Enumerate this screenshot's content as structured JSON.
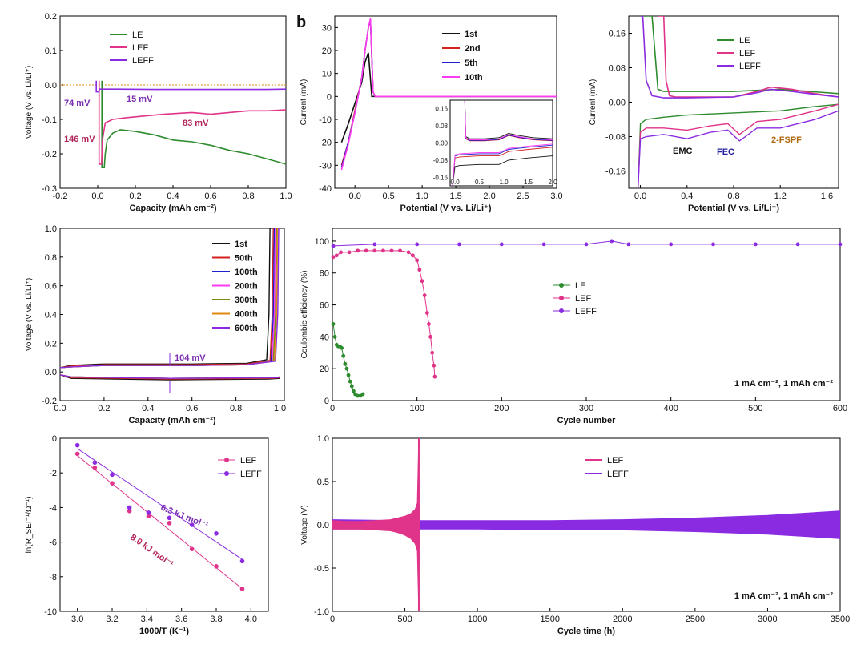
{
  "panel_label": "b",
  "chart_data": [
    {
      "id": "a",
      "type": "line",
      "xlabel": "Capacity (mAh cm⁻²)",
      "ylabel": "Voltage (V vs. Li/Li⁺)",
      "xlim": [
        -0.2,
        1.0
      ],
      "ylim": [
        -0.3,
        0.2
      ],
      "xticks": [
        -0.2,
        0.0,
        0.2,
        0.4,
        0.6,
        0.8,
        1.0
      ],
      "yticks": [
        -0.3,
        -0.2,
        -0.1,
        0.0,
        0.1,
        0.2
      ],
      "xticklabels": [
        "-0.2",
        "0.0",
        "0.2",
        "0.4",
        "0.6",
        "0.8",
        "1.0"
      ],
      "yticklabels": [
        "-0.3",
        "-0.2",
        "-0.1",
        "0.0",
        "0.1",
        "0.2"
      ],
      "legend": [
        "LE",
        "LEF",
        "LEFF"
      ],
      "legend_position": "top-left",
      "series": [
        {
          "name": "LE",
          "color": "#2e8b2e",
          "x": [
            0.035,
            0.04,
            0.05,
            0.08,
            0.12,
            0.2,
            0.3,
            0.4,
            0.5,
            0.6,
            0.7,
            0.8,
            0.9,
            1.0
          ],
          "y": [
            -0.24,
            -0.2,
            -0.16,
            -0.14,
            -0.13,
            -0.135,
            -0.145,
            -0.16,
            -0.165,
            -0.175,
            -0.19,
            -0.2,
            -0.215,
            -0.23
          ]
        },
        {
          "name": "LEF",
          "color": "#e0338a",
          "x": [
            0.02,
            0.025,
            0.04,
            0.08,
            0.15,
            0.25,
            0.35,
            0.5,
            0.6,
            0.7,
            0.8,
            0.9,
            1.0
          ],
          "y": [
            -0.23,
            -0.16,
            -0.11,
            -0.1,
            -0.095,
            -0.09,
            -0.085,
            -0.08,
            -0.085,
            -0.08,
            -0.075,
            -0.075,
            -0.072
          ]
        },
        {
          "name": "LEFF",
          "color": "#8a2be2",
          "x": [
            0.005,
            0.01,
            0.03,
            0.1,
            0.3,
            0.5,
            0.7,
            0.9,
            1.0
          ],
          "y": [
            -0.02,
            -0.012,
            -0.012,
            -0.012,
            -0.013,
            -0.013,
            -0.013,
            -0.013,
            -0.012
          ]
        }
      ],
      "annotations": [
        "74 mV",
        "15 mV",
        "146 mV",
        "83 mV"
      ]
    },
    {
      "id": "b",
      "type": "line",
      "xlabel": "Potential (V vs. Li/Li⁺)",
      "ylabel": "Current (mA)",
      "xlim": [
        -0.3,
        3.0
      ],
      "ylim": [
        -40,
        35
      ],
      "xticks": [
        0.0,
        0.5,
        1.0,
        1.5,
        2.0,
        2.5,
        3.0
      ],
      "yticks": [
        -40,
        -30,
        -20,
        -10,
        0,
        10,
        20,
        30
      ],
      "xticklabels": [
        "0.0",
        "0.5",
        "1.0",
        "1.5",
        "2.0",
        "2.5",
        "3.0"
      ],
      "yticklabels": [
        "-40",
        "-30",
        "-20",
        "-10",
        "0",
        "10",
        "20",
        "30"
      ],
      "legend": [
        "1st",
        "2nd",
        "5th",
        "10th"
      ],
      "legend_position": "top-right",
      "series": [
        {
          "name": "1st",
          "color": "#111111",
          "x": [
            -0.2,
            -0.1,
            0.0,
            0.1,
            0.15,
            0.2,
            0.25,
            0.3,
            0.5,
            1.0,
            3.0
          ],
          "y": [
            -20,
            -12,
            -3,
            6,
            15,
            19,
            0,
            0,
            0,
            0,
            0
          ]
        },
        {
          "name": "2nd",
          "color": "#d62020",
          "x": [
            -0.2,
            -0.1,
            0.0,
            0.1,
            0.15,
            0.2,
            0.23,
            0.27,
            0.3,
            0.5,
            1.0,
            3.0
          ],
          "y": [
            -30,
            -20,
            -6,
            8,
            20,
            30,
            33,
            2,
            0,
            0,
            0,
            0
          ]
        },
        {
          "name": "5th",
          "color": "#2020d0",
          "x": [
            -0.2,
            -0.1,
            0.0,
            0.1,
            0.15,
            0.2,
            0.23,
            0.27,
            0.3,
            0.5,
            1.0,
            3.0
          ],
          "y": [
            -31,
            -20,
            -7,
            8,
            20,
            30,
            33.5,
            2,
            0,
            0,
            0,
            0
          ]
        },
        {
          "name": "10th",
          "color": "#ff3df0",
          "x": [
            -0.2,
            -0.1,
            0.0,
            0.1,
            0.15,
            0.2,
            0.23,
            0.27,
            0.3,
            0.5,
            1.0,
            3.0
          ],
          "y": [
            -32,
            -21,
            -7,
            8,
            20,
            30,
            34,
            2,
            0,
            0,
            0,
            0
          ]
        }
      ],
      "inset": {
        "xlim": [
          -0.1,
          2.0
        ],
        "ylim": [
          -0.2,
          0.2
        ],
        "xticks": [
          0.0,
          0.5,
          1.0,
          1.5,
          2.0
        ],
        "yticks": [
          -0.16,
          -0.08,
          0.0,
          0.08,
          0.16
        ],
        "xticklabels": [
          "0.0",
          "0.5",
          "1.0",
          "1.5",
          "2.0"
        ],
        "yticklabels": [
          "-0.16",
          "-0.08",
          "0.00",
          "0.08",
          "0.16"
        ]
      }
    },
    {
      "id": "c",
      "type": "line",
      "xlabel": "Potential (V vs. Li/Li⁺)",
      "ylabel": "Current (mA)",
      "xlim": [
        -0.1,
        1.7
      ],
      "ylim": [
        -0.2,
        0.2
      ],
      "xticks": [
        0.0,
        0.4,
        0.8,
        1.2,
        1.6
      ],
      "yticks": [
        -0.16,
        -0.08,
        0.0,
        0.08,
        0.16
      ],
      "xticklabels": [
        "0.0",
        "0.4",
        "0.8",
        "1.2",
        "1.6"
      ],
      "yticklabels": [
        "-0.16",
        "-0.08",
        "0.00",
        "0.08",
        "0.16"
      ],
      "legend": [
        "LE",
        "LEF",
        "LEFF"
      ],
      "legend_position": "top-right",
      "series": [
        {
          "name": "LE",
          "color": "#2e8b2e",
          "x": [
            0.0,
            0.05,
            0.1,
            0.15,
            0.2,
            0.4,
            0.8,
            1.2,
            1.7
          ],
          "y": [
            0.2,
            0.2,
            0.2,
            0.03,
            0.025,
            0.025,
            0.025,
            0.03,
            0.02
          ]
        },
        {
          "name": "LEF",
          "color": "#e0338a",
          "x": [
            0.15,
            0.2,
            0.22,
            0.25,
            0.3,
            0.5,
            0.8,
            1.0,
            1.12,
            1.3,
            1.5,
            1.7
          ],
          "y": [
            0.2,
            0.2,
            0.05,
            0.015,
            0.012,
            0.012,
            0.012,
            0.025,
            0.035,
            0.03,
            0.02,
            0.012
          ]
        },
        {
          "name": "LEFF",
          "color": "#8a2be2",
          "x": [
            0.0,
            0.02,
            0.05,
            0.1,
            0.2,
            0.4,
            0.8,
            1.0,
            1.12,
            1.3,
            1.5,
            1.7
          ],
          "y": [
            0.2,
            0.2,
            0.05,
            0.015,
            0.01,
            0.01,
            0.012,
            0.022,
            0.03,
            0.025,
            0.018,
            0.012
          ]
        }
      ],
      "annotations": [
        "EMC",
        "FEC",
        "2-FSPF"
      ]
    },
    {
      "id": "d",
      "type": "line",
      "xlabel": "Capacity (mAh cm⁻²)",
      "ylabel": "Voltage (V vs. Li/Li⁺)",
      "xlim": [
        0.0,
        1.02
      ],
      "ylim": [
        -0.2,
        1.0
      ],
      "xticks": [
        0.0,
        0.2,
        0.4,
        0.6,
        0.8,
        1.0
      ],
      "yticks": [
        -0.2,
        0.0,
        0.2,
        0.4,
        0.6,
        0.8,
        1.0
      ],
      "xticklabels": [
        "0.0",
        "0.2",
        "0.4",
        "0.6",
        "0.8",
        "1.0"
      ],
      "yticklabels": [
        "-0.2",
        "0.0",
        "0.2",
        "0.4",
        "0.6",
        "0.8",
        "1.0"
      ],
      "legend": [
        "1st",
        "50th",
        "100th",
        "200th",
        "300th",
        "400th",
        "600th"
      ],
      "legend_position": "top-right",
      "series": [
        {
          "name": "1st",
          "color": "#111111",
          "charge_end": 0.95,
          "plateau": 0.055
        },
        {
          "name": "50th",
          "color": "#d62020",
          "charge_end": 0.965,
          "plateau": 0.05
        },
        {
          "name": "100th",
          "color": "#2020d0",
          "charge_end": 0.97,
          "plateau": 0.045
        },
        {
          "name": "200th",
          "color": "#ff3df0",
          "charge_end": 0.975,
          "plateau": 0.045
        },
        {
          "name": "300th",
          "color": "#7a8a10",
          "charge_end": 0.98,
          "plateau": 0.045
        },
        {
          "name": "400th",
          "color": "#e08a10",
          "charge_end": 0.985,
          "plateau": 0.045
        },
        {
          "name": "600th",
          "color": "#8a2be2",
          "charge_end": 0.99,
          "plateau": 0.045
        }
      ],
      "annotations": [
        "104 mV"
      ]
    },
    {
      "id": "e",
      "type": "scatter",
      "xlabel": "Cycle number",
      "ylabel": "Coulombic efficiency (%)",
      "xlim": [
        0,
        600
      ],
      "ylim": [
        0,
        108
      ],
      "xticks": [
        0,
        100,
        200,
        300,
        400,
        500,
        600
      ],
      "yticks": [
        0,
        20,
        40,
        60,
        80,
        100
      ],
      "xticklabels": [
        "0",
        "100",
        "200",
        "300",
        "400",
        "500",
        "600"
      ],
      "yticklabels": [
        "0",
        "20",
        "40",
        "60",
        "80",
        "100"
      ],
      "legend": [
        "LE",
        "LEF",
        "LEFF"
      ],
      "legend_position": "center",
      "series": [
        {
          "name": "LE",
          "color": "#2e8b2e",
          "x": [
            1,
            3,
            5,
            7,
            9,
            11,
            13,
            15,
            17,
            19,
            21,
            23,
            25,
            27,
            30,
            33,
            36
          ],
          "y": [
            48,
            40,
            35,
            34,
            34,
            33,
            28,
            23,
            20,
            16,
            12,
            9,
            6,
            4,
            3,
            3,
            4
          ]
        },
        {
          "name": "LEF",
          "color": "#e0338a",
          "x": [
            1,
            5,
            10,
            20,
            30,
            40,
            50,
            60,
            70,
            80,
            90,
            95,
            100,
            103,
            106,
            109,
            112,
            114,
            116,
            118,
            120,
            121
          ],
          "y": [
            90,
            91,
            93,
            93,
            94,
            94,
            94,
            94,
            94,
            94,
            93,
            91,
            88,
            82,
            75,
            66,
            55,
            48,
            40,
            30,
            22,
            15
          ]
        },
        {
          "name": "LEFF",
          "color": "#8a2be2",
          "x": [
            1,
            50,
            100,
            150,
            200,
            250,
            300,
            330,
            350,
            400,
            450,
            500,
            550,
            600
          ],
          "y": [
            97,
            98,
            98,
            98,
            98,
            98,
            98,
            100,
            98,
            98,
            98,
            98,
            98,
            98
          ]
        }
      ],
      "annotations": [
        "1 mA cm⁻², 1 mAh cm⁻²"
      ]
    },
    {
      "id": "f",
      "type": "scatter",
      "xlabel": "1000/T (K⁻¹)",
      "ylabel": "ln(R_SEI⁻¹/Ω⁻¹)",
      "xlim": [
        2.9,
        4.1
      ],
      "ylim": [
        -10,
        0
      ],
      "xticks": [
        3.0,
        3.2,
        3.4,
        3.6,
        3.8,
        4.0
      ],
      "yticks": [
        -10,
        -8,
        -6,
        -4,
        -2,
        0
      ],
      "xticklabels": [
        "3.0",
        "3.2",
        "3.4",
        "3.6",
        "3.8",
        "4.0"
      ],
      "yticklabels": [
        "-10",
        "-8",
        "-6",
        "-4",
        "-2",
        "0"
      ],
      "legend": [
        "LEF",
        "LEFF"
      ],
      "legend_position": "top-right",
      "series": [
        {
          "name": "LEF",
          "color": "#e0338a",
          "x": [
            3.0,
            3.1,
            3.2,
            3.3,
            3.41,
            3.53,
            3.66,
            3.8,
            3.95
          ],
          "y": [
            -0.9,
            -1.7,
            -2.6,
            -4.2,
            -4.5,
            -4.9,
            -6.4,
            -7.4,
            -8.7
          ],
          "fit": [
            [
              3.0,
              -1.0
            ],
            [
              3.95,
              -8.7
            ]
          ]
        },
        {
          "name": "LEFF",
          "color": "#8a2be2",
          "x": [
            3.0,
            3.1,
            3.2,
            3.3,
            3.41,
            3.53,
            3.66,
            3.8,
            3.95
          ],
          "y": [
            -0.4,
            -1.4,
            -2.1,
            -4.0,
            -4.3,
            -4.6,
            -5.0,
            -5.5,
            -7.1
          ],
          "fit": [
            [
              3.0,
              -0.6
            ],
            [
              3.95,
              -7.0
            ]
          ]
        }
      ],
      "annotations": [
        "6.3 kJ mol⁻¹",
        "8.0 kJ mol⁻¹"
      ]
    },
    {
      "id": "g",
      "type": "area",
      "xlabel": "Cycle time (h)",
      "ylabel": "Voltage (V)",
      "xlim": [
        0,
        3500
      ],
      "ylim": [
        -1.0,
        1.0
      ],
      "xticks": [
        0,
        500,
        1000,
        1500,
        2000,
        2500,
        3000,
        3500
      ],
      "yticks": [
        -1.0,
        -0.5,
        0.0,
        0.5,
        1.0
      ],
      "xticklabels": [
        "0",
        "500",
        "1000",
        "1500",
        "2000",
        "2500",
        "3000",
        "3500"
      ],
      "yticklabels": [
        "-1.0",
        "-0.5",
        "0.0",
        "0.5",
        "1.0"
      ],
      "legend": [
        "LEF",
        "LEFF"
      ],
      "legend_position": "top-center",
      "series": [
        {
          "name": "LEF",
          "color": "#e0338a",
          "x": [
            0,
            100,
            200,
            300,
            400,
            450,
            500,
            540,
            570,
            585,
            595,
            600
          ],
          "upper": [
            0.05,
            0.04,
            0.04,
            0.05,
            0.06,
            0.08,
            0.1,
            0.13,
            0.18,
            0.25,
            1.0,
            0.0
          ],
          "lower": [
            -0.05,
            -0.05,
            -0.05,
            -0.06,
            -0.07,
            -0.09,
            -0.12,
            -0.16,
            -0.22,
            -0.3,
            -1.0,
            0.0
          ]
        },
        {
          "name": "LEFF",
          "color": "#8a2be2",
          "x": [
            0,
            500,
            1000,
            1500,
            2000,
            2500,
            3000,
            3300,
            3500
          ],
          "upper": [
            0.06,
            0.05,
            0.05,
            0.05,
            0.06,
            0.08,
            0.11,
            0.14,
            0.16
          ],
          "lower": [
            -0.05,
            -0.05,
            -0.05,
            -0.06,
            -0.06,
            -0.08,
            -0.11,
            -0.14,
            -0.16
          ]
        }
      ],
      "annotations": [
        "1 mA cm⁻², 1 mAh cm⁻²"
      ]
    }
  ]
}
